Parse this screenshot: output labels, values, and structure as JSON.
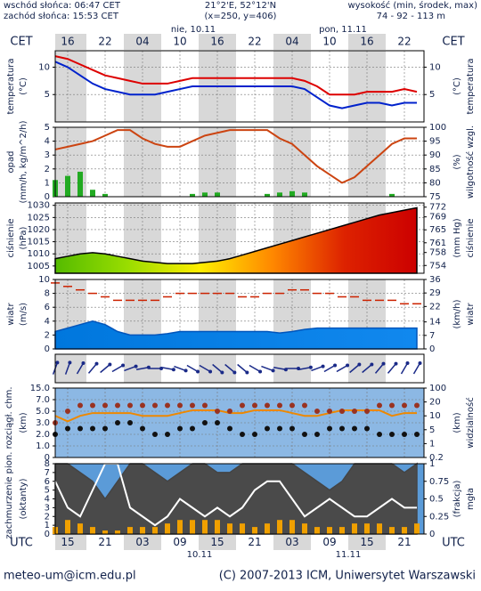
{
  "header": {
    "sunrise": "wschód słońca: 06:47 CET",
    "sunset": "zachód słońca: 15:53 CET",
    "coords": "21°2'E, 52°12'N",
    "gridpoint": "(x=250, y=406)",
    "elevation_title": "wysokość (min, środek, max)",
    "elevation": "74 - 92 - 113 m"
  },
  "time_axis": {
    "top_zone": "CET",
    "top_hours": [
      null,
      "16",
      null,
      null,
      "22",
      null,
      null,
      "04",
      null,
      null,
      "10",
      null,
      null,
      "16",
      null,
      null,
      "22",
      null,
      null,
      "04",
      null,
      null,
      "10",
      null,
      null,
      "16",
      null,
      null,
      "22",
      null
    ],
    "top_dates": [
      "nie, 10.11",
      "pon, 11.11"
    ],
    "bottom_zone": "UTC",
    "bottom_hours": [
      null,
      "15",
      null,
      null,
      "21",
      null,
      null,
      "03",
      null,
      null,
      "09",
      null,
      null,
      "15",
      null,
      null,
      "21",
      null,
      null,
      "03",
      null,
      null,
      "09",
      null,
      null,
      "15",
      null,
      null,
      "21",
      null
    ],
    "bottom_dates": [
      "10.11",
      "11.11"
    ]
  },
  "cloud_label": "zachmurzenie pion. rozciągł. chm.",
  "chart_data": [
    {
      "type": "combo",
      "ylabel": [
        "temperatura",
        "(°C)"
      ],
      "y2label": [
        "(°C)",
        "temperatura"
      ],
      "ylim": [
        0,
        13
      ],
      "yticks": [
        5,
        10
      ],
      "y2lim": [
        0,
        13
      ],
      "y2ticks": [
        5,
        10
      ],
      "grid": true,
      "series": [
        {
          "kind": "line",
          "color": "#dd0000",
          "values": [
            12,
            11.5,
            10.5,
            9.5,
            8.5,
            8,
            7.5,
            7,
            7,
            7,
            7.5,
            8,
            8,
            8,
            8,
            8,
            8,
            8,
            8,
            8,
            7.5,
            6.5,
            5,
            5,
            5,
            5.5,
            5.5,
            5.5,
            6,
            5.5
          ]
        },
        {
          "kind": "line",
          "color": "#0022cc",
          "values": [
            11,
            10,
            8.5,
            7,
            6,
            5.5,
            5,
            5,
            5,
            5.5,
            6,
            6.5,
            6.5,
            6.5,
            6.5,
            6.5,
            6.5,
            6.5,
            6.5,
            6.5,
            6,
            4.5,
            3,
            2.5,
            3,
            3.5,
            3.5,
            3,
            3.5,
            3.5
          ]
        }
      ]
    },
    {
      "type": "combo",
      "ylabel": [
        "opad",
        "(mm/h, kg/m^2/h)"
      ],
      "y2label": [
        "(%)",
        "wilgotność wzgl."
      ],
      "ylim": [
        0,
        5
      ],
      "yticks": [
        0,
        1,
        2,
        3,
        4,
        5
      ],
      "y2lim": [
        75,
        100
      ],
      "y2ticks": [
        75,
        80,
        85,
        90,
        95,
        100
      ],
      "grid": true,
      "series": [
        {
          "kind": "bar",
          "color": "#22aa22",
          "values": [
            1.2,
            1.5,
            1.8,
            0.5,
            0.2,
            0,
            0,
            0,
            0,
            0,
            0,
            0.2,
            0.3,
            0.3,
            0,
            0,
            0,
            0.2,
            0.3,
            0.4,
            0.3,
            0,
            0,
            0,
            0,
            0,
            0,
            0.2,
            0,
            0
          ]
        },
        {
          "kind": "line",
          "axis": "y2",
          "color": "#cc4411",
          "values": [
            92,
            93,
            94,
            95,
            97,
            99,
            99,
            96,
            94,
            93,
            93,
            95,
            97,
            98,
            99,
            99,
            99,
            99,
            96,
            94,
            90,
            86,
            83,
            80,
            82,
            86,
            90,
            94,
            96,
            96
          ]
        }
      ]
    },
    {
      "type": "combo",
      "ylabel": [
        "ciśnienie",
        "(hPa)"
      ],
      "y2label": [
        "(mm Hg)",
        "ciśnienie"
      ],
      "ylim": [
        1002,
        1031
      ],
      "yticks": [
        1005,
        1010,
        1015,
        1020,
        1025,
        1030
      ],
      "y2lim": [
        751.6,
        773.3
      ],
      "y2ticks": [
        754,
        758,
        761,
        765,
        769,
        772
      ],
      "grid": true,
      "series": [
        {
          "kind": "area",
          "color": "#000000",
          "colors": [
            "#55bb00",
            "#99dd00",
            "#ffee00",
            "#ff8800",
            "#dd2200",
            "#cc0000"
          ],
          "values": [
            1008,
            1009,
            1010,
            1010.5,
            1010,
            1009,
            1008,
            1007,
            1006.5,
            1006,
            1006,
            1006,
            1006.5,
            1007,
            1008,
            1009.5,
            1011,
            1012.5,
            1014,
            1015.5,
            1017,
            1018.5,
            1020,
            1021.5,
            1023,
            1024.5,
            1026,
            1027,
            1028,
            1029
          ]
        }
      ]
    },
    {
      "type": "combo",
      "ylabel": [
        "wiatr",
        "(m/s)"
      ],
      "y2label": [
        "(km/h)",
        "wiatr"
      ],
      "ylim": [
        0,
        10
      ],
      "yticks": [
        0,
        2,
        4,
        6,
        8,
        10
      ],
      "y2lim": [
        0,
        36
      ],
      "y2ticks": [
        0,
        7,
        14,
        22,
        29,
        36
      ],
      "grid": true,
      "series": [
        {
          "kind": "area",
          "color": "#0055bb",
          "colors": [
            "#0077dd",
            "#1188ee"
          ],
          "values": [
            2.5,
            3,
            3.5,
            4,
            3.5,
            2.5,
            2,
            2,
            2,
            2.2,
            2.5,
            2.5,
            2.5,
            2.5,
            2.5,
            2.5,
            2.5,
            2.5,
            2.3,
            2.5,
            2.8,
            3,
            3,
            3,
            3,
            3,
            3,
            3,
            3,
            3
          ]
        },
        {
          "kind": "dash",
          "color": "#cc2200",
          "values": [
            9.5,
            9,
            8.5,
            8,
            7.5,
            7,
            7,
            7,
            7,
            7.5,
            8,
            8,
            8,
            8,
            8,
            7.5,
            7.5,
            8,
            8,
            8.5,
            8.5,
            8,
            8,
            7.5,
            7.5,
            7,
            7,
            7,
            6.5,
            6.5
          ]
        }
      ]
    },
    {
      "type": "arrows",
      "color": "#1a2a88",
      "values": [
        200,
        200,
        210,
        220,
        230,
        240,
        250,
        260,
        270,
        280,
        290,
        300,
        300,
        310,
        310,
        310,
        300,
        290,
        280,
        270,
        260,
        250,
        240,
        240,
        230,
        230,
        220,
        220,
        210,
        210
      ]
    },
    {
      "type": "combo",
      "ylabel": [
        "(km)"
      ],
      "y2label": [
        "(km)",
        "widzialność"
      ],
      "background": "#8cb8e4",
      "tick_spaced": true,
      "ylim": [
        0,
        15
      ],
      "yticks": [
        0,
        {
          "value": 1,
          "label": "1.0"
        },
        {
          "value": 2,
          "label": "2.0"
        },
        {
          "value": 3,
          "label": "3.0"
        },
        {
          "value": 5,
          "label": "5.0"
        },
        {
          "value": 7,
          "label": "7.0"
        },
        {
          "value": 15,
          "label": "15.0"
        }
      ],
      "y2lim": [
        0.2,
        100
      ],
      "y2ticks": [
        0.2,
        1,
        5,
        10,
        20,
        100
      ],
      "grid": true,
      "series": [
        {
          "kind": "line",
          "axis": "y2",
          "color": "#ee8800",
          "values": [
            10,
            8,
            10,
            12,
            12,
            12,
            12,
            10,
            10,
            10,
            12,
            14,
            14,
            14,
            12,
            12,
            14,
            14,
            14,
            12,
            10,
            10,
            12,
            14,
            14,
            14,
            14,
            10,
            12,
            12
          ]
        },
        {
          "kind": "dot",
          "color": "#993322",
          "values": [
            3,
            5,
            6,
            6,
            6,
            6,
            6,
            6,
            6,
            6,
            6,
            6,
            6,
            5,
            5,
            6,
            6,
            6,
            6,
            6,
            6,
            5,
            5,
            5,
            5,
            5,
            6,
            6,
            6,
            6
          ]
        },
        {
          "kind": "dot",
          "color": "#111111",
          "values": [
            2,
            2.5,
            2.5,
            2.5,
            2.5,
            3,
            3,
            2.5,
            2,
            2,
            2.5,
            2.5,
            3,
            3,
            2.5,
            2,
            2,
            2.5,
            2.5,
            2.5,
            2,
            2,
            2.5,
            2.5,
            2.5,
            2.5,
            2,
            2,
            2,
            2
          ]
        }
      ]
    },
    {
      "type": "combo",
      "ylabel": [
        "(oktanty)"
      ],
      "y2label": [
        "(frakcja)",
        "mgła"
      ],
      "background": "#5b9bd8",
      "ylim": [
        0,
        8
      ],
      "yticks": [
        0,
        1,
        2,
        3,
        4,
        5,
        6,
        7,
        8
      ],
      "y2lim": [
        0,
        1
      ],
      "y2ticks": [
        0,
        0.25,
        0.5,
        0.75,
        1
      ],
      "grid": false,
      "series": [
        {
          "kind": "area",
          "color": "#444444",
          "colors": [
            "#4a4a4a",
            "#4a4a4a"
          ],
          "values": [
            8,
            8,
            7,
            6,
            4,
            6,
            8,
            8,
            7,
            6,
            7,
            8,
            8,
            7,
            7,
            8,
            8,
            8,
            8,
            8,
            7,
            6,
            5,
            6,
            8,
            8,
            8,
            8,
            7,
            8
          ]
        },
        {
          "kind": "line",
          "color": "#ffffff",
          "values": [
            6,
            3,
            2,
            5,
            8,
            8,
            3,
            2,
            1,
            2,
            4,
            3,
            2,
            3,
            2,
            3,
            5,
            6,
            6,
            4,
            2,
            3,
            4,
            3,
            2,
            2,
            3,
            4,
            3,
            3
          ]
        },
        {
          "kind": "bar",
          "axis": "y2",
          "color": "#f0a000",
          "values": [
            0.1,
            0.2,
            0.15,
            0.1,
            0.05,
            0.05,
            0.1,
            0.1,
            0.1,
            0.15,
            0.2,
            0.2,
            0.2,
            0.2,
            0.15,
            0.15,
            0.1,
            0.15,
            0.2,
            0.2,
            0.15,
            0.1,
            0.1,
            0.1,
            0.15,
            0.15,
            0.15,
            0.1,
            0.1,
            0.15
          ]
        }
      ]
    }
  ],
  "footer": {
    "email": "meteo-um@icm.edu.pl",
    "copyright": "(C) 2007-2013 ICM, Uniwersytet Warszawski"
  }
}
